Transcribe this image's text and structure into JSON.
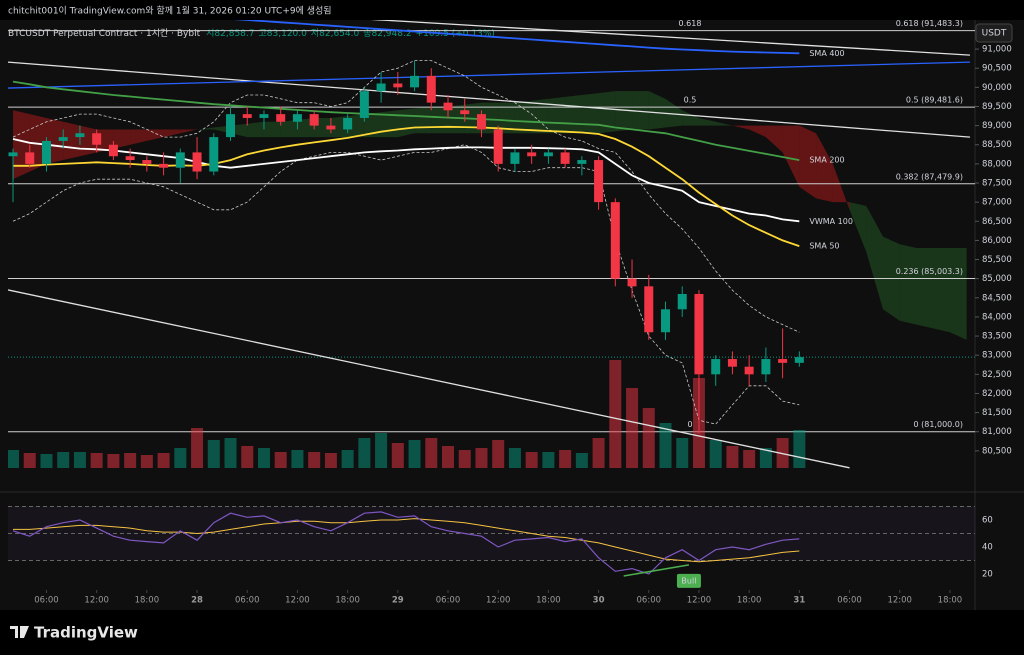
{
  "header": {
    "created": "chitchit001이 TradingView.com와 함께 1월 31, 2026 01:20 UTC+9에 생성됨",
    "symbol": "BTCUSDT Perpetual Contract · 1시간 · Bybit",
    "ohlc": [
      "시82,858.7",
      "고83,120.0",
      "저82,654.0",
      "종82,948.2"
    ],
    "change": "+109.5 (+0.13%)",
    "currency": "USDT"
  },
  "chart_data": {
    "type": "candlestick",
    "xlim": [
      -0.3,
      57.2
    ],
    "ylim": [
      80000,
      91760
    ],
    "yticks": [
      {
        "value": 91000,
        "label": "91,000"
      },
      {
        "value": 90500,
        "label": "90,500"
      },
      {
        "value": 90000,
        "label": "90,000"
      },
      {
        "value": 89500,
        "label": "89,500"
      },
      {
        "value": 89000,
        "label": "89,000"
      },
      {
        "value": 88500,
        "label": "88,500"
      },
      {
        "value": 88000,
        "label": "88,000"
      },
      {
        "value": 87500,
        "label": "87,500"
      },
      {
        "value": 87000,
        "label": "87,000"
      },
      {
        "value": 86500,
        "label": "86,500"
      },
      {
        "value": 86000,
        "label": "86,000"
      },
      {
        "value": 85500,
        "label": "85,500"
      },
      {
        "value": 85000,
        "label": "85,000"
      },
      {
        "value": 84500,
        "label": "84,500"
      },
      {
        "value": 84000,
        "label": "84,000"
      },
      {
        "value": 83500,
        "label": "83,500"
      },
      {
        "value": 83000,
        "label": "83,000"
      },
      {
        "value": 82500,
        "label": "82,500"
      },
      {
        "value": 82000,
        "label": "82,000"
      },
      {
        "value": 81500,
        "label": "81,500"
      },
      {
        "value": 81000,
        "label": "81,000"
      },
      {
        "value": 80500,
        "label": "80,500"
      }
    ],
    "xticks": [
      {
        "value": 2,
        "label": "06:00"
      },
      {
        "value": 5,
        "label": "12:00"
      },
      {
        "value": 8,
        "label": "18:00"
      },
      {
        "value": 11,
        "label": "28",
        "bold": true
      },
      {
        "value": 14,
        "label": "06:00"
      },
      {
        "value": 17,
        "label": "12:00"
      },
      {
        "value": 20,
        "label": "18:00"
      },
      {
        "value": 23,
        "label": "29",
        "bold": true
      },
      {
        "value": 26,
        "label": "06:00"
      },
      {
        "value": 29,
        "label": "12:00"
      },
      {
        "value": 32,
        "label": "18:00"
      },
      {
        "value": 35,
        "label": "30",
        "bold": true
      },
      {
        "value": 38,
        "label": "06:00"
      },
      {
        "value": 41,
        "label": "12:00"
      },
      {
        "value": 44,
        "label": "18:00"
      },
      {
        "value": 47,
        "label": "31",
        "bold": true
      },
      {
        "value": 50,
        "label": "06:00"
      },
      {
        "value": 53,
        "label": "12:00"
      },
      {
        "value": 56,
        "label": "18:00"
      }
    ],
    "open": [
      88200,
      88300,
      88000,
      88600,
      88700,
      88800,
      88500,
      88200,
      88100,
      88000,
      87900,
      88300,
      87800,
      88700,
      89300,
      89200,
      89300,
      89100,
      89300,
      89000,
      88900,
      89200,
      89900,
      90100,
      90000,
      90300,
      89600,
      89400,
      89300,
      88900,
      88000,
      88300,
      88200,
      88300,
      88000,
      88100,
      87000,
      85000,
      84800,
      83600,
      84200,
      84600,
      82500,
      82900,
      82700,
      82500,
      82900,
      82800
    ],
    "high": [
      88400,
      88500,
      88700,
      88900,
      89000,
      88900,
      88600,
      88400,
      88200,
      88300,
      88400,
      88700,
      88800,
      89500,
      89500,
      89400,
      89500,
      89400,
      89400,
      89200,
      89300,
      90000,
      90400,
      90400,
      90700,
      90500,
      89800,
      89700,
      89400,
      89000,
      88400,
      88500,
      88400,
      88400,
      88200,
      88200,
      87100,
      85500,
      85100,
      84400,
      84800,
      84700,
      83000,
      83100,
      83000,
      83200,
      83700,
      83100
    ],
    "low": [
      87000,
      87900,
      87800,
      88400,
      88500,
      88300,
      88100,
      87900,
      87800,
      87700,
      87500,
      87600,
      87700,
      88600,
      89000,
      88900,
      89000,
      88900,
      88900,
      88800,
      88800,
      89100,
      89600,
      89800,
      89900,
      89400,
      89200,
      89100,
      88700,
      87800,
      87800,
      88000,
      88000,
      87900,
      87700,
      86800,
      84800,
      84500,
      83400,
      83400,
      84000,
      80950,
      82200,
      82500,
      82200,
      82300,
      82400,
      82700
    ],
    "close": [
      88300,
      88000,
      88600,
      88700,
      88800,
      88500,
      88200,
      88100,
      88000,
      87900,
      88300,
      87800,
      88700,
      89300,
      89200,
      89300,
      89100,
      89300,
      89000,
      88900,
      89200,
      89900,
      90100,
      90000,
      90300,
      89600,
      89400,
      89300,
      88900,
      88000,
      88300,
      88200,
      88300,
      88000,
      88100,
      87000,
      85000,
      84800,
      83600,
      84200,
      84600,
      82500,
      82900,
      82700,
      82500,
      82900,
      82800,
      82950
    ],
    "up_color": "#089981",
    "down_color": "#f23645",
    "last_price": 82948.2,
    "volume": {
      "vlim": [
        0,
        120
      ],
      "values": [
        18,
        15,
        14,
        16,
        16,
        15,
        14,
        15,
        13,
        15,
        20,
        40,
        28,
        30,
        22,
        20,
        16,
        18,
        16,
        15,
        18,
        30,
        35,
        25,
        28,
        30,
        22,
        18,
        20,
        28,
        20,
        16,
        16,
        18,
        15,
        30,
        108,
        80,
        60,
        45,
        30,
        90,
        28,
        22,
        18,
        20,
        30,
        38
      ]
    },
    "cloud": {
      "up_color": "#2e7d32",
      "down_color": "#b71c1c",
      "span_a": [
        87600,
        87800,
        88000,
        88100,
        88200,
        88300,
        88400,
        88500,
        88600,
        88700,
        88800,
        88900,
        88950,
        89000,
        89050,
        89100,
        89100,
        89150,
        89200,
        89200,
        89250,
        89300,
        89350,
        89400,
        89450,
        89500,
        89500,
        89550,
        89600,
        89600,
        89600,
        89650,
        89700,
        89750,
        89800,
        89850,
        89900,
        89900,
        89900,
        89700,
        89400,
        89200,
        89100,
        89000,
        88900,
        88700,
        88300,
        87400,
        87100,
        87000,
        87000,
        86900,
        86100,
        85900,
        85800,
        85800,
        85800,
        85800
      ],
      "span_b": [
        89400,
        89300,
        89200,
        89100,
        89000,
        88900,
        88900,
        88900,
        88900,
        88900,
        88900,
        88900,
        88900,
        88800,
        88700,
        88700,
        88700,
        88700,
        88700,
        88700,
        88700,
        88700,
        88700,
        88700,
        88800,
        88800,
        88800,
        88800,
        88800,
        88800,
        88800,
        88800,
        88800,
        88800,
        88800,
        88800,
        88850,
        88900,
        88900,
        88950,
        89000,
        89000,
        89000,
        89000,
        89000,
        89000,
        89000,
        89000,
        88800,
        88000,
        86800,
        85700,
        84200,
        83900,
        83800,
        83700,
        83600,
        83400
      ]
    },
    "bollinger": {
      "color": "#c8c8c8",
      "upper": [
        88700,
        88900,
        89100,
        89200,
        89300,
        89300,
        89200,
        89100,
        88900,
        88700,
        88700,
        88800,
        89100,
        89600,
        89800,
        89800,
        89700,
        89600,
        89600,
        89500,
        89600,
        90000,
        90400,
        90500,
        90700,
        90700,
        90500,
        90300,
        90000,
        89800,
        89600,
        89300,
        88900,
        88700,
        88600,
        88400,
        88300,
        87800,
        87200,
        86700,
        86300,
        85800,
        85200,
        84700,
        84300,
        84000,
        83800,
        83600
      ],
      "lower": [
        86500,
        86700,
        87000,
        87300,
        87500,
        87600,
        87600,
        87600,
        87500,
        87400,
        87200,
        87000,
        86800,
        86800,
        87000,
        87400,
        87800,
        88100,
        88200,
        88300,
        88300,
        88200,
        88100,
        88200,
        88300,
        88300,
        88400,
        88500,
        88300,
        87900,
        87800,
        87800,
        87900,
        87900,
        87900,
        87800,
        86000,
        84700,
        83500,
        83000,
        82800,
        81300,
        81200,
        81700,
        82200,
        82200,
        81800,
        81700
      ]
    },
    "indicators": [
      {
        "name": "SMA 400",
        "color": "#2962ff",
        "values": [
          92300,
          92260,
          92220,
          92180,
          92140,
          92100,
          92060,
          92020,
          91980,
          91940,
          91900,
          91860,
          91820,
          91790,
          91760,
          91730,
          91700,
          91670,
          91640,
          91610,
          91580,
          91550,
          91520,
          91490,
          91460,
          91430,
          91400,
          91370,
          91340,
          91310,
          91280,
          91250,
          91220,
          91190,
          91160,
          91130,
          91100,
          91070,
          91040,
          91010,
          90990,
          90970,
          90950,
          90935,
          90920,
          90910,
          90900,
          90890
        ]
      },
      {
        "name": "SMA 200",
        "color": "#43a047",
        "values": [
          90150,
          90080,
          90000,
          89950,
          89900,
          89850,
          89800,
          89760,
          89720,
          89680,
          89640,
          89600,
          89560,
          89530,
          89500,
          89470,
          89440,
          89410,
          89380,
          89350,
          89330,
          89310,
          89290,
          89270,
          89250,
          89230,
          89210,
          89190,
          89170,
          89150,
          89120,
          89100,
          89080,
          89060,
          89040,
          89020,
          88950,
          88900,
          88850,
          88800,
          88700,
          88600,
          88500,
          88420,
          88340,
          88260,
          88180,
          88100
        ]
      },
      {
        "name": "VWMA 100",
        "color": "#ffffff",
        "values": [
          88650,
          88550,
          88500,
          88450,
          88400,
          88380,
          88350,
          88300,
          88250,
          88200,
          88150,
          88050,
          87950,
          87900,
          87950,
          88000,
          88050,
          88100,
          88150,
          88200,
          88250,
          88300,
          88330,
          88350,
          88380,
          88400,
          88420,
          88430,
          88430,
          88420,
          88420,
          88420,
          88410,
          88400,
          88380,
          88300,
          88000,
          87700,
          87500,
          87400,
          87300,
          87000,
          86900,
          86800,
          86700,
          86650,
          86550,
          86500
        ]
      },
      {
        "name": "SMA 50",
        "color": "#fdd835",
        "values": [
          87950,
          87950,
          87980,
          88000,
          88020,
          88040,
          88020,
          88000,
          87970,
          87950,
          87960,
          87950,
          88000,
          88100,
          88250,
          88350,
          88430,
          88500,
          88560,
          88620,
          88680,
          88760,
          88840,
          88900,
          88950,
          88960,
          88970,
          88960,
          88950,
          88930,
          88900,
          88880,
          88860,
          88840,
          88820,
          88780,
          88650,
          88450,
          88200,
          87900,
          87600,
          87250,
          86950,
          86650,
          86400,
          86200,
          86000,
          85850
        ]
      }
    ],
    "fib": [
      {
        "ratio": "0.618",
        "value": 91483.3,
        "label": "0.618 (91,483.3)"
      },
      {
        "ratio": "0.5",
        "value": 89481.6,
        "label": "0.5 (89,481.6)"
      },
      {
        "value": 87479.9,
        "label": "0.382 (87,479.9)"
      },
      {
        "value": 85003.3,
        "label": "0.236 (85,003.3)"
      },
      {
        "ratio": "0",
        "value": 81000.0,
        "label": "0 (81,000.0)"
      }
    ],
    "trendlines": [
      {
        "color": "#e0e0e0",
        "points": [
          [
            17.1,
            91888
          ],
          [
            57.2,
            90843
          ]
        ]
      },
      {
        "color": "#e0e0e0",
        "points": [
          [
            -0.3,
            90660
          ],
          [
            57.2,
            88700
          ]
        ]
      },
      {
        "color": "#2962ff",
        "points": [
          [
            -0.3,
            89981
          ],
          [
            57.2,
            90660
          ]
        ]
      },
      {
        "color": "#e0e0e0",
        "points": [
          [
            -0.3,
            84706
          ],
          [
            50,
            80057
          ]
        ]
      }
    ],
    "rsi": {
      "ylim": [
        9.6,
        76.3
      ],
      "yticks": [
        20,
        40,
        60
      ],
      "levels": [
        70,
        50,
        30
      ],
      "color": "#7e57c2",
      "ma_color": "#f5c342",
      "values": [
        52,
        48,
        55,
        58,
        60,
        54,
        48,
        45,
        44,
        43,
        52,
        45,
        58,
        65,
        62,
        63,
        58,
        60,
        55,
        52,
        58,
        65,
        66,
        62,
        63,
        55,
        52,
        50,
        48,
        40,
        45,
        46,
        47,
        44,
        46,
        32,
        22,
        24,
        20,
        32,
        38,
        30,
        38,
        40,
        38,
        42,
        45,
        46
      ],
      "ma": [
        53,
        53,
        54,
        55,
        56,
        56,
        55,
        54,
        52,
        51,
        51,
        50,
        51,
        53,
        55,
        57,
        58,
        59,
        59,
        58,
        58,
        59,
        60,
        60,
        61,
        60,
        59,
        58,
        56,
        54,
        52,
        50,
        48,
        47,
        45,
        43,
        40,
        37,
        34,
        31,
        30,
        29,
        30,
        31,
        32,
        34,
        36,
        37
      ],
      "divergence": {
        "label": "Bull",
        "color": "#4caf50",
        "points": [
          [
            36.5,
            18.5
          ],
          [
            40.4,
            26.7
          ]
        ]
      }
    }
  },
  "footer": {
    "logo": "TradingView"
  }
}
